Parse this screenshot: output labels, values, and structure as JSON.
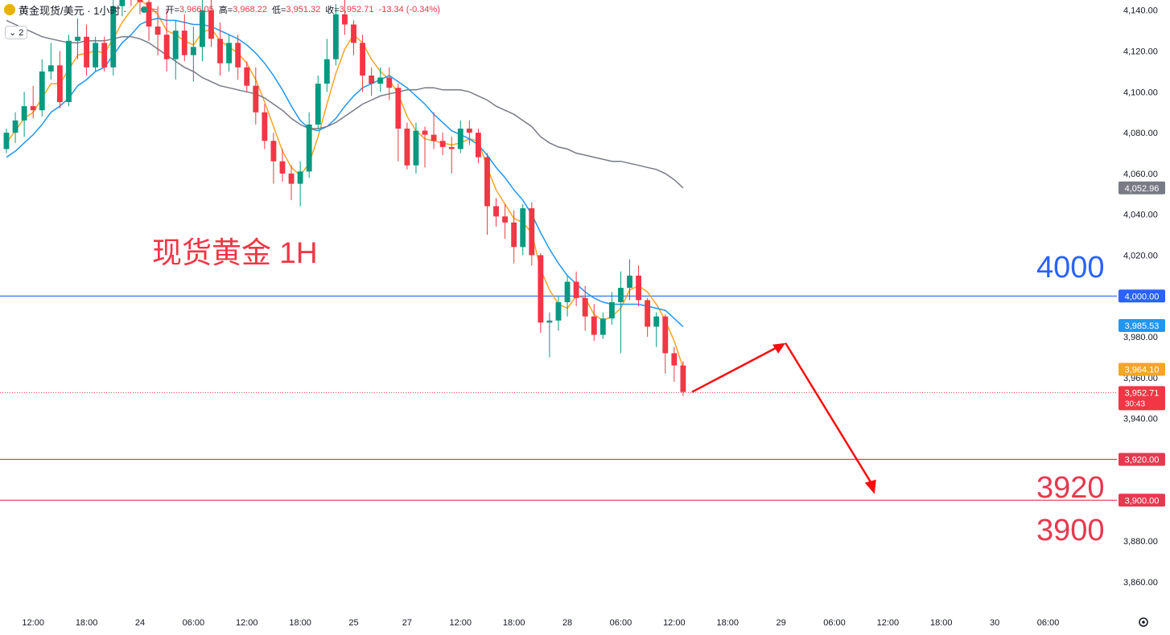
{
  "header": {
    "symbol_title": "黄金现货/美元 · 1小时 ·",
    "open_label": "开=",
    "open_value": "3,966.05",
    "high_label": "高=",
    "high_value": "3,968.22",
    "low_label": "低=",
    "low_value": "3,951.32",
    "close_label": "收=",
    "close_value": "3,952.71",
    "change_value": "-13.34 (-0.34%)",
    "indicator_count": "2"
  },
  "colors": {
    "up": "#089981",
    "down": "#f23645",
    "ma_fast": "#f5a623",
    "ma_mid": "#2196f3",
    "ma_slow": "#787b86",
    "level_4000": "#2962ff",
    "level_support": "#e53950",
    "arrow": "#f90d0d"
  },
  "chart_data": {
    "type": "candlestick",
    "title": "现货黄金 1H",
    "ylim": [
      3845,
      4145
    ],
    "x_range": [
      0,
      124
    ],
    "y_ticks": [
      "3,860.00",
      "3,880.00",
      "3,900.00",
      "3,920.00",
      "3,940.00",
      "3,960.00",
      "3,980.00",
      "4,000.00",
      "4,020.00",
      "4,040.00",
      "4,060.00",
      "4,080.00",
      "4,100.00",
      "4,120.00",
      "4,140.00"
    ],
    "y_tick_values": [
      3860,
      3880,
      3900,
      3920,
      3940,
      3960,
      3980,
      4000,
      4020,
      4040,
      4060,
      4080,
      4100,
      4120,
      4140
    ],
    "x_ticks": [
      {
        "i": 3,
        "label": "12:00"
      },
      {
        "i": 9,
        "label": "18:00"
      },
      {
        "i": 15,
        "label": "24"
      },
      {
        "i": 21,
        "label": "06:00"
      },
      {
        "i": 27,
        "label": "12:00"
      },
      {
        "i": 33,
        "label": "18:00"
      },
      {
        "i": 39,
        "label": "25"
      },
      {
        "i": 45,
        "label": "27"
      },
      {
        "i": 51,
        "label": "12:00"
      },
      {
        "i": 57,
        "label": "18:00"
      },
      {
        "i": 63,
        "label": "28"
      },
      {
        "i": 69,
        "label": "06:00"
      },
      {
        "i": 75,
        "label": "12:00"
      },
      {
        "i": 81,
        "label": "18:00"
      },
      {
        "i": 87,
        "label": "29"
      },
      {
        "i": 93,
        "label": "06:00"
      },
      {
        "i": 99,
        "label": "12:00"
      },
      {
        "i": 105,
        "label": "18:00"
      },
      {
        "i": 111,
        "label": "30"
      },
      {
        "i": 117,
        "label": "06:00"
      }
    ],
    "ohlc": [
      [
        4072,
        4082,
        4070,
        4080
      ],
      [
        4080,
        4090,
        4075,
        4086
      ],
      [
        4086,
        4100,
        4078,
        4093
      ],
      [
        4093,
        4103,
        4087,
        4091
      ],
      [
        4091,
        4116,
        4088,
        4110
      ],
      [
        4110,
        4124,
        4106,
        4113
      ],
      [
        4113,
        4120,
        4092,
        4095
      ],
      [
        4095,
        4128,
        4093,
        4125
      ],
      [
        4125,
        4136,
        4116,
        4127
      ],
      [
        4127,
        4133,
        4108,
        4112
      ],
      [
        4112,
        4127,
        4110,
        4124
      ],
      [
        4124,
        4127,
        4110,
        4112
      ],
      [
        4112,
        4146,
        4108,
        4142
      ],
      [
        4142,
        4155,
        4137,
        4150
      ],
      [
        4150,
        4160,
        4142,
        4148
      ],
      [
        4148,
        4158,
        4138,
        4144
      ],
      [
        4144,
        4152,
        4125,
        4132
      ],
      [
        4132,
        4142,
        4118,
        4128
      ],
      [
        4128,
        4140,
        4110,
        4116
      ],
      [
        4116,
        4135,
        4106,
        4130
      ],
      [
        4130,
        4138,
        4115,
        4118
      ],
      [
        4118,
        4132,
        4105,
        4122
      ],
      [
        4122,
        4145,
        4115,
        4140
      ],
      [
        4140,
        4150,
        4122,
        4126
      ],
      [
        4126,
        4134,
        4108,
        4114
      ],
      [
        4114,
        4128,
        4110,
        4124
      ],
      [
        4124,
        4128,
        4106,
        4112
      ],
      [
        4112,
        4115,
        4100,
        4103
      ],
      [
        4103,
        4112,
        4084,
        4090
      ],
      [
        4090,
        4094,
        4072,
        4076
      ],
      [
        4076,
        4080,
        4055,
        4066
      ],
      [
        4066,
        4072,
        4056,
        4060
      ],
      [
        4060,
        4064,
        4047,
        4055
      ],
      [
        4055,
        4066,
        4044,
        4061
      ],
      [
        4061,
        4090,
        4058,
        4084
      ],
      [
        4084,
        4108,
        4082,
        4104
      ],
      [
        4104,
        4126,
        4100,
        4116
      ],
      [
        4116,
        4143,
        4113,
        4138
      ],
      [
        4138,
        4148,
        4128,
        4133
      ],
      [
        4133,
        4135,
        4118,
        4124
      ],
      [
        4124,
        4128,
        4100,
        4108
      ],
      [
        4108,
        4112,
        4098,
        4104
      ],
      [
        4104,
        4112,
        4100,
        4107
      ],
      [
        4107,
        4112,
        4096,
        4102
      ],
      [
        4102,
        4104,
        4066,
        4082
      ],
      [
        4082,
        4085,
        4062,
        4064
      ],
      [
        4064,
        4085,
        4060,
        4081
      ],
      [
        4081,
        4083,
        4063,
        4079
      ],
      [
        4079,
        4090,
        4072,
        4076
      ],
      [
        4076,
        4080,
        4069,
        4073
      ],
      [
        4073,
        4078,
        4060,
        4072
      ],
      [
        4072,
        4086,
        4070,
        4082
      ],
      [
        4082,
        4086,
        4074,
        4080
      ],
      [
        4080,
        4082,
        4065,
        4068
      ],
      [
        4068,
        4070,
        4030,
        4044
      ],
      [
        4044,
        4048,
        4034,
        4039
      ],
      [
        4039,
        4045,
        4028,
        4036
      ],
      [
        4036,
        4042,
        4016,
        4024
      ],
      [
        4024,
        4045,
        4020,
        4043
      ],
      [
        4043,
        4046,
        4015,
        4020
      ],
      [
        4020,
        4021,
        3982,
        3987
      ],
      [
        3987,
        3992,
        3970,
        3988
      ],
      [
        3988,
        4000,
        3983,
        3997
      ],
      [
        3997,
        4010,
        3990,
        4007
      ],
      [
        4007,
        4012,
        3995,
        3999
      ],
      [
        3999,
        4005,
        3983,
        3990
      ],
      [
        3990,
        3996,
        3978,
        3981
      ],
      [
        3981,
        3992,
        3979,
        3989
      ],
      [
        3989,
        4002,
        3986,
        3997
      ],
      [
        3997,
        4012,
        3972,
        4004
      ],
      [
        4004,
        4018,
        3998,
        4010
      ],
      [
        4010,
        4015,
        3995,
        3998
      ],
      [
        3998,
        3999,
        3980,
        3985
      ],
      [
        3985,
        3992,
        3975,
        3990
      ],
      [
        3990,
        3991,
        3962,
        3972
      ],
      [
        3972,
        3975,
        3958,
        3966
      ],
      [
        3966,
        3968,
        3951,
        3953
      ]
    ],
    "series": [
      {
        "name": "",
        "color_key": "ma_fast",
        "values": [
          4075,
          4081,
          4087,
          4090,
          4097,
          4104,
          4104,
          4111,
          4118,
          4119,
          4120,
          4119,
          4126,
          4134,
          4140,
          4145,
          4142,
          4138,
          4130,
          4128,
          4125,
          4123,
          4129,
          4131,
          4125,
          4122,
          4119,
          4114,
          4106,
          4095,
          4083,
          4071,
          4063,
          4059,
          4065,
          4078,
          4094,
          4109,
          4121,
          4128,
          4124,
          4116,
          4110,
          4106,
          4099,
          4088,
          4081,
          4077,
          4076,
          4075,
          4074,
          4075,
          4077,
          4076,
          4063,
          4052,
          4045,
          4038,
          4036,
          4031,
          4013,
          4003,
          3996,
          3994,
          4000,
          3999,
          3991,
          3988,
          3990,
          3994,
          4003,
          4005,
          4002,
          3996,
          3988,
          3978,
          3965
        ]
      },
      {
        "name": "",
        "color_key": "ma_mid",
        "values": [
          4068,
          4071,
          4075,
          4079,
          4084,
          4090,
          4093,
          4097,
          4103,
          4106,
          4110,
          4112,
          4118,
          4124,
          4128,
          4133,
          4135,
          4136,
          4135,
          4135,
          4134,
          4133,
          4133,
          4132,
          4130,
          4128,
          4126,
          4123,
          4119,
          4114,
          4108,
          4101,
          4093,
          4086,
          4082,
          4081,
          4083,
          4087,
          4093,
          4098,
          4102,
          4104,
          4106,
          4108,
          4105,
          4102,
          4098,
          4094,
          4089,
          4085,
          4081,
          4079,
          4077,
          4074,
          4069,
          4063,
          4058,
          4052,
          4047,
          4040,
          4031,
          4023,
          4016,
          4010,
          4006,
          4002,
          3999,
          3997,
          3996,
          3996,
          3996,
          3996,
          3995,
          3994,
          3993,
          3989,
          3985
        ]
      },
      {
        "name": "",
        "color_key": "ma_slow",
        "values": [
          4135,
          4133,
          4131,
          4129,
          4127,
          4126,
          4125,
          4124,
          4124,
          4125,
          4125,
          4125,
          4126,
          4127,
          4127,
          4126,
          4124,
          4121,
          4118,
          4115,
          4112,
          4110,
          4107,
          4105,
          4103,
          4102,
          4101,
          4100,
          4099,
          4097,
          4094,
          4091,
          4087,
          4084,
          4082,
          4082,
          4083,
          4085,
          4088,
          4091,
          4094,
          4096,
          4098,
          4099,
          4100,
          4101,
          4101,
          4102,
          4102,
          4101,
          4101,
          4101,
          4100,
          4098,
          4096,
          4093,
          4091,
          4089,
          4086,
          4083,
          4078,
          4075,
          4073,
          4072,
          4070,
          4069,
          4068,
          4067,
          4066,
          4066,
          4065,
          4064,
          4063,
          4062,
          4060,
          4057,
          4053
        ]
      }
    ],
    "levels": [
      {
        "value": 4000,
        "color_key": "level_4000",
        "axis_label": "4,000.00",
        "big_label": "4000"
      },
      {
        "value": 3920,
        "color_key": "level_support",
        "axis_label": "3,920.00",
        "big_label": "3920"
      },
      {
        "value": 3900,
        "color_key": "level_support",
        "axis_label": "3,900.00",
        "big_label": "3900"
      }
    ],
    "price_badges": [
      {
        "value": 4052.96,
        "label": "4,052.96",
        "color": "#787b86"
      },
      {
        "value": 3985.53,
        "label": "3,985.53",
        "color": "#2196f3"
      },
      {
        "value": 3964.1,
        "label": "3,964.10",
        "color": "#f5a623"
      }
    ],
    "last_price": {
      "value": 3952.71,
      "label": "3,952.71",
      "countdown": "30:43"
    },
    "projection": [
      {
        "i": 77,
        "price": 3953
      },
      {
        "i": 87.5,
        "price": 3977
      },
      {
        "i": 97.5,
        "price": 3903
      }
    ]
  }
}
